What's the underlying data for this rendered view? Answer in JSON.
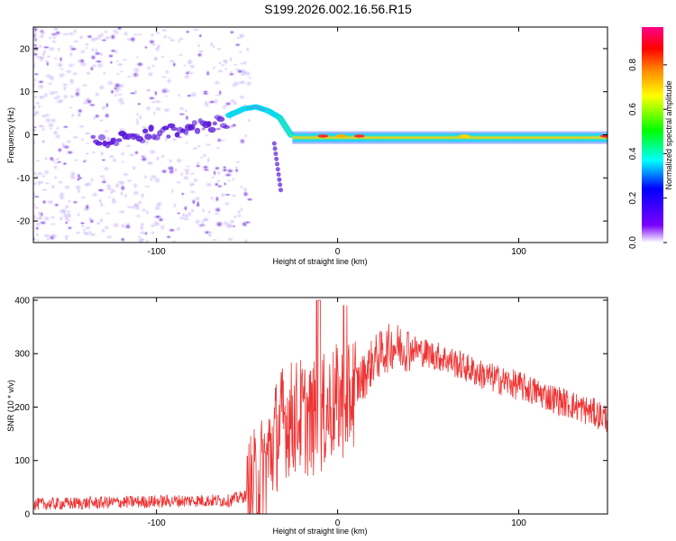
{
  "title": "S199.2026.002.16.56.R15",
  "colors": {
    "line": "#ee3333",
    "frame": "#000000",
    "background": "#ffffff"
  },
  "chart_data": [
    {
      "type": "heatmap",
      "name": "spectrogram",
      "xlabel": "Height of straight line (km)",
      "ylabel": "Frequency (Hz)",
      "xlim": [
        -168,
        149
      ],
      "ylim": [
        -25,
        25
      ],
      "xticks": [
        -100,
        0,
        100
      ],
      "xtick_labels": [
        "-100",
        "0",
        "100"
      ],
      "yticks": [
        -20,
        -10,
        0,
        10,
        20
      ],
      "ytick_labels": [
        "-20",
        "-10",
        "0",
        "10",
        "20"
      ],
      "colorbar": {
        "label": "Normalized spectral amplitude",
        "range": [
          0,
          0.97
        ],
        "ticks": [
          0.0,
          0.2,
          0.4,
          0.6,
          0.8
        ],
        "tick_labels": [
          "0.0",
          "0.2",
          "0.4",
          "0.6",
          "0.8"
        ],
        "colormap": [
          "#ffffff",
          "#7a00ff",
          "#0000ff",
          "#00ffff",
          "#00ff00",
          "#ffff00",
          "#ff8800",
          "#ff0000",
          "#ff0088"
        ]
      },
      "ridge": [
        {
          "x": -60,
          "y": 4.5
        },
        {
          "x": -52,
          "y": 6.0
        },
        {
          "x": -45,
          "y": 6.5
        },
        {
          "x": -38,
          "y": 5.5
        },
        {
          "x": -32,
          "y": 4.0
        },
        {
          "x": -25,
          "y": -0.5
        },
        {
          "x": -10,
          "y": 0.0
        },
        {
          "x": 20,
          "y": 0.0
        },
        {
          "x": 149,
          "y": -0.2
        }
      ]
    },
    {
      "type": "line",
      "name": "snr",
      "xlabel": "Height of straight line (km)",
      "ylabel": "SNR (10 * v/v)",
      "xlim": [
        -168,
        149
      ],
      "ylim": [
        0,
        405
      ],
      "xticks": [
        -100,
        0,
        100
      ],
      "xtick_labels": [
        "-100",
        "0",
        "100"
      ],
      "yticks": [
        0,
        100,
        200,
        300,
        400
      ],
      "ytick_labels": [
        "0",
        "100",
        "200",
        "300",
        "400"
      ],
      "trend_x": [
        -168,
        -120,
        -80,
        -60,
        -50,
        -45,
        -40,
        -35,
        -30,
        -25,
        -20,
        -15,
        -10,
        -5,
        0,
        5,
        10,
        15,
        20,
        30,
        40,
        60,
        80,
        100,
        120,
        149
      ],
      "trend_y": [
        18,
        22,
        25,
        25,
        35,
        55,
        90,
        140,
        175,
        180,
        185,
        175,
        180,
        200,
        210,
        215,
        240,
        260,
        290,
        315,
        310,
        290,
        260,
        240,
        215,
        180
      ]
    }
  ]
}
